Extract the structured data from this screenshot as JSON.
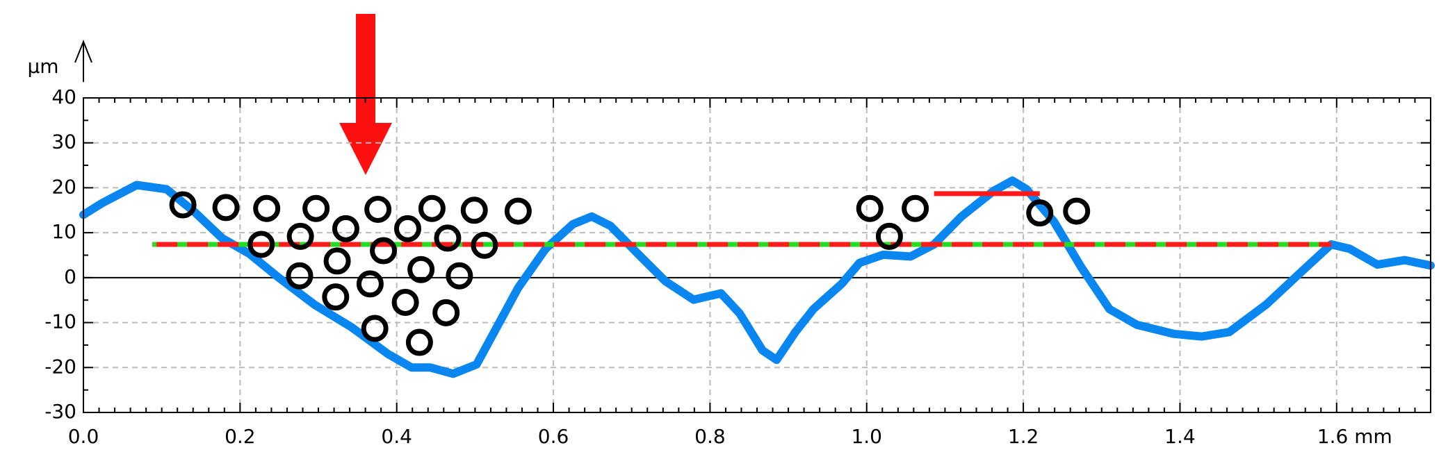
{
  "chart_data": {
    "type": "line",
    "y_label": "µm",
    "xlim": [
      0,
      1.72
    ],
    "ylim": [
      -30,
      40
    ],
    "xticks": [
      {
        "value": 0,
        "label": "0.0"
      },
      0.2,
      0.4,
      0.6,
      0.8,
      {
        "value": 1,
        "label": "1.0"
      },
      1.2,
      1.4,
      {
        "value": 1.6,
        "label": "1.6 mm"
      }
    ],
    "yticks": [
      -30,
      -20,
      -10,
      0,
      10,
      20,
      30,
      40
    ],
    "grid": true,
    "x": [
      0,
      0.024,
      0.068,
      0.106,
      0.142,
      0.177,
      0.212,
      0.248,
      0.295,
      0.342,
      0.389,
      0.419,
      0.443,
      0.472,
      0.502,
      0.531,
      0.555,
      0.59,
      0.625,
      0.649,
      0.673,
      0.708,
      0.743,
      0.779,
      0.814,
      0.838,
      0.867,
      0.885,
      0.909,
      0.932,
      0.968,
      0.991,
      1.021,
      1.056,
      1.086,
      1.121,
      1.162,
      1.186,
      1.204,
      1.239,
      1.274,
      1.31,
      1.345,
      1.392,
      1.428,
      1.463,
      1.51,
      1.558,
      1.593,
      1.617,
      1.652,
      1.687,
      1.72
    ],
    "series": [
      {
        "color": "#0a86f0",
        "values": [
          14,
          16.6,
          20.6,
          19.7,
          14.6,
          8.8,
          5.3,
          0.2,
          -6,
          -11,
          -17,
          -20,
          -20,
          -21.4,
          -19.3,
          -10,
          -2.3,
          6.4,
          11.9,
          13.6,
          11.5,
          5.3,
          -0.8,
          -4.9,
          -3.5,
          -8,
          -16.2,
          -18.3,
          -12.1,
          -7,
          -1.4,
          3.3,
          5.1,
          4.7,
          7.4,
          13.6,
          19.3,
          21.6,
          19.7,
          12.5,
          2.3,
          -7,
          -10.5,
          -12.5,
          -13.1,
          -12.1,
          -6,
          1.8,
          7.4,
          6.4,
          2.9,
          3.9,
          2.7
        ]
      }
    ],
    "hlines": [
      {
        "y": 7.4,
        "x": [
          0.088,
          1.593
        ],
        "color": "#ff1a1a",
        "dash_color": "#22dd22"
      },
      {
        "y": 18.7,
        "x": [
          1.086,
          1.221
        ],
        "color": "#ff1a1a"
      }
    ],
    "markers": {
      "color": "#000000",
      "x": [
        0.127,
        0.182,
        0.234,
        0.297,
        0.376,
        0.445,
        0.499,
        0.555,
        0.227,
        0.277,
        0.335,
        0.414,
        0.465,
        0.512,
        0.324,
        0.383,
        0.431,
        0.48,
        0.276,
        0.366,
        0.411,
        0.463,
        0.322,
        0.372,
        0.429,
        1.004,
        1.062,
        1.029,
        1.221,
        1.268
      ],
      "y": [
        16.2,
        15.6,
        15.4,
        15.4,
        15.2,
        15.4,
        15,
        14.8,
        7.4,
        9.2,
        10.9,
        10.9,
        8.8,
        7.2,
        3.7,
        6,
        1.8,
        0.4,
        0.4,
        -1.4,
        -5.5,
        -7.8,
        -4.3,
        -11.3,
        -14.4,
        15.4,
        15.4,
        9.2,
        14.4,
        14.8
      ]
    }
  }
}
